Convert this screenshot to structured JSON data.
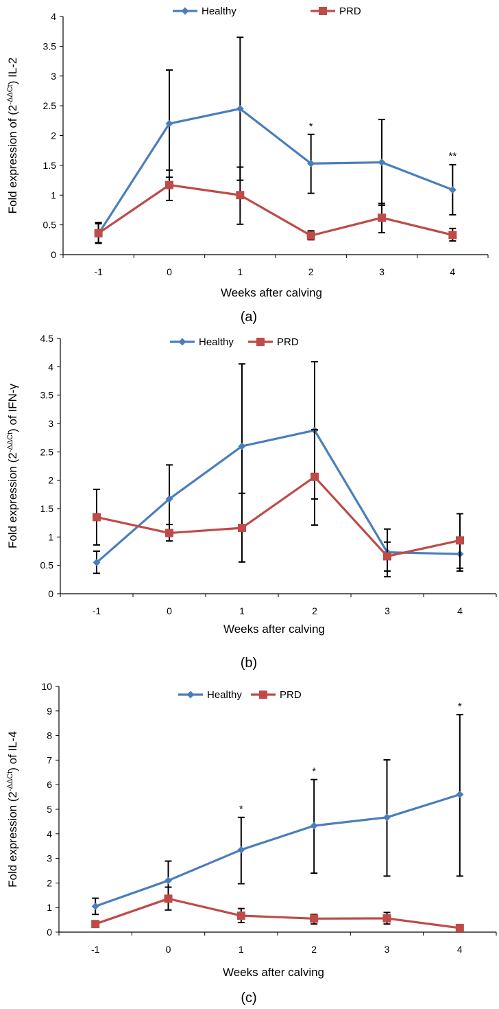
{
  "colors": {
    "healthy": "#4a7ebb",
    "prd": "#be4b48",
    "axis": "#000000",
    "errorbar": "#000000"
  },
  "chart_data": [
    {
      "type": "line",
      "panel_label": "(a)",
      "xlabel": "Weeks after calving",
      "ylabel_prefix": "Fold expression of (2",
      "ylabel_sup": "-ΔΔCt",
      "ylabel_suffix": ") IL-2",
      "x": [
        "-1",
        "0",
        "1",
        "2",
        "3",
        "4"
      ],
      "ylim": [
        0,
        4
      ],
      "yticks": [
        "0",
        "0.5",
        "1",
        "1.5",
        "2",
        "2.5",
        "3",
        "3.5",
        "4"
      ],
      "ystep": 0.5,
      "legend": "top",
      "series": [
        {
          "name": "Healthy",
          "marker": "diamond",
          "values": [
            0.35,
            2.2,
            2.45,
            1.53,
            1.55,
            1.09
          ],
          "err_upper": [
            0.54,
            3.1,
            3.65,
            2.02,
            2.27,
            1.51
          ],
          "err_lower": [
            0.2,
            1.3,
            1.25,
            1.03,
            0.83,
            0.67
          ]
        },
        {
          "name": "PRD",
          "marker": "square",
          "values": [
            0.36,
            1.17,
            1.0,
            0.32,
            0.62,
            0.33
          ],
          "err_upper": [
            0.52,
            1.42,
            1.47,
            0.4,
            0.86,
            0.44
          ],
          "err_lower": [
            0.19,
            0.91,
            0.51,
            0.25,
            0.37,
            0.23
          ]
        }
      ],
      "annotations": [
        {
          "x": "2",
          "y": 2.1,
          "text": "*"
        },
        {
          "x": "4",
          "y": 1.6,
          "text": "**"
        }
      ]
    },
    {
      "type": "line",
      "panel_label": "(b)",
      "xlabel": "Weeks after calving",
      "ylabel_prefix": "Fold expression (2",
      "ylabel_sup": "-ΔΔCt",
      "ylabel_suffix": ") of IFN-γ",
      "x": [
        "-1",
        "0",
        "1",
        "2",
        "3",
        "4"
      ],
      "ylim": [
        0,
        4.5
      ],
      "yticks": [
        "0",
        "0.5",
        "1",
        "1.5",
        "2",
        "2.5",
        "3",
        "3.5",
        "4",
        "4.5"
      ],
      "ystep": 0.5,
      "legend": "top",
      "series": [
        {
          "name": "Healthy",
          "marker": "diamond",
          "values": [
            0.55,
            1.67,
            2.6,
            2.88,
            0.73,
            0.7
          ],
          "err_upper": [
            0.75,
            2.27,
            4.05,
            4.09,
            0.91,
            0.97
          ],
          "err_lower": [
            0.36,
            1.09,
            0.56,
            1.67,
            0.4,
            0.45
          ]
        },
        {
          "name": "PRD",
          "marker": "square",
          "values": [
            1.35,
            1.07,
            1.16,
            2.06,
            0.66,
            0.94
          ],
          "err_upper": [
            1.84,
            1.22,
            1.77,
            2.89,
            1.14,
            1.41
          ],
          "err_lower": [
            0.86,
            0.93,
            0.56,
            1.21,
            0.3,
            0.4
          ]
        }
      ],
      "annotations": []
    },
    {
      "type": "line",
      "panel_label": "(c)",
      "xlabel": "Weeks after calving",
      "ylabel_prefix": "Fold expression (2",
      "ylabel_sup": "-ΔΔCt",
      "ylabel_suffix": ") of IL-4",
      "x": [
        "-1",
        "0",
        "1",
        "2",
        "3",
        "4"
      ],
      "ylim": [
        0,
        10
      ],
      "yticks": [
        "0",
        "1",
        "2",
        "3",
        "4",
        "5",
        "6",
        "7",
        "8",
        "9",
        "10"
      ],
      "ystep": 1,
      "legend": "top",
      "series": [
        {
          "name": "Healthy",
          "marker": "diamond",
          "values": [
            1.05,
            2.1,
            3.35,
            4.33,
            4.67,
            5.6
          ],
          "err_upper": [
            1.38,
            2.89,
            4.67,
            6.21,
            7.01,
            8.85
          ],
          "err_lower": [
            0.72,
            1.36,
            1.97,
            2.4,
            2.28,
            2.28
          ]
        },
        {
          "name": "PRD",
          "marker": "square",
          "values": [
            0.33,
            1.36,
            0.67,
            0.55,
            0.56,
            0.17
          ],
          "err_upper": [
            0.33,
            1.83,
            0.96,
            0.72,
            0.8,
            0.17
          ],
          "err_lower": [
            0.33,
            0.9,
            0.39,
            0.33,
            0.33,
            0.17
          ]
        }
      ],
      "annotations": [
        {
          "x": "1",
          "y": 4.87,
          "text": "*"
        },
        {
          "x": "2",
          "y": 6.41,
          "text": "*"
        },
        {
          "x": "4",
          "y": 9.05,
          "text": "*"
        }
      ]
    }
  ]
}
